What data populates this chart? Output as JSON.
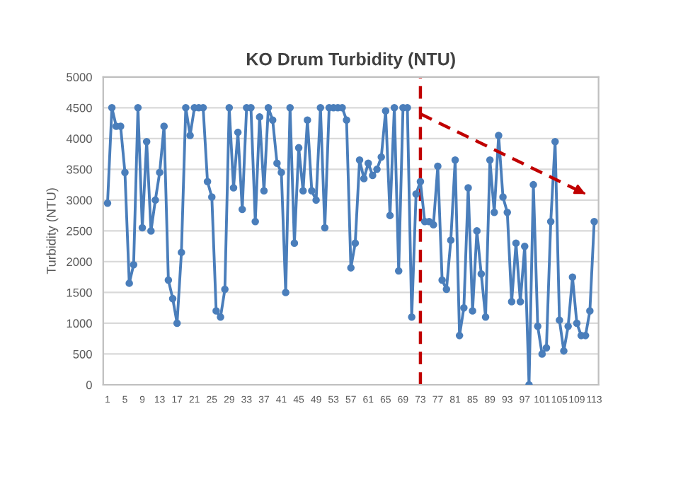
{
  "chart_data": {
    "type": "line",
    "title": "KO Drum Turbidity (NTU)",
    "ylabel": "Turbidity (NTU)",
    "x": [
      1,
      2,
      3,
      4,
      5,
      6,
      7,
      8,
      9,
      10,
      11,
      12,
      13,
      14,
      15,
      16,
      17,
      18,
      19,
      20,
      21,
      22,
      23,
      24,
      25,
      26,
      27,
      28,
      29,
      30,
      31,
      32,
      33,
      34,
      35,
      36,
      37,
      38,
      39,
      40,
      41,
      42,
      43,
      44,
      45,
      46,
      47,
      48,
      49,
      50,
      51,
      52,
      53,
      54,
      55,
      56,
      57,
      58,
      59,
      60,
      61,
      62,
      63,
      64,
      65,
      66,
      67,
      68,
      69,
      70,
      71,
      72,
      73,
      74,
      75,
      76,
      77,
      78,
      79,
      80,
      81,
      82,
      83,
      84,
      85,
      86,
      87,
      88,
      89,
      90,
      91,
      92,
      93,
      94,
      95,
      96,
      97,
      98,
      99,
      100,
      101,
      102,
      103,
      104,
      105,
      106,
      107,
      108,
      109,
      110,
      111,
      112,
      113
    ],
    "series": [
      {
        "color": "#4a7ebb",
        "marker": "circle",
        "line_style": "solid",
        "values": [
          2950,
          4500,
          4200,
          4200,
          3450,
          1650,
          1950,
          4500,
          2550,
          3950,
          2500,
          3000,
          3450,
          4200,
          1700,
          1400,
          1000,
          2150,
          4500,
          4050,
          4500,
          4500,
          4500,
          3300,
          3050,
          1200,
          1100,
          1550,
          4500,
          3200,
          4100,
          2850,
          4500,
          4500,
          2650,
          4350,
          3150,
          4500,
          4300,
          3600,
          3450,
          1500,
          4500,
          2300,
          3850,
          3150,
          4300,
          3150,
          3000,
          4500,
          2550,
          4500,
          4500,
          4500,
          4500,
          4300,
          1900,
          2300,
          3650,
          3350,
          3600,
          3400,
          3500,
          3700,
          4450,
          2750,
          4500,
          1850,
          4500,
          4500,
          1100,
          3100,
          3300,
          2650,
          2650,
          2600,
          3550,
          1700,
          1550,
          2350,
          3650,
          800,
          1250,
          3200,
          1200,
          2500,
          1800,
          1100,
          3650,
          2800,
          4050,
          3050,
          2800,
          1350,
          2300,
          1350,
          2250,
          0,
          3250,
          950,
          500,
          600,
          2650,
          3950,
          1050,
          550,
          950,
          1750,
          1000,
          800,
          800,
          1200,
          2650
        ]
      },
      {
        "type": "line",
        "color": "#c00000",
        "line_style": "dashed",
        "x": [
          73,
          111
        ],
        "values": [
          4400,
          3100
        ]
      }
    ],
    "ref_lines": [
      {
        "axis": "x",
        "value": 73,
        "color": "#c00000",
        "line_style": "dashed"
      }
    ],
    "xlim": [
      0,
      114
    ],
    "xticks": [
      1,
      5,
      9,
      13,
      17,
      21,
      25,
      29,
      33,
      37,
      41,
      45,
      49,
      53,
      57,
      61,
      65,
      69,
      73,
      77,
      81,
      85,
      89,
      93,
      97,
      101,
      105,
      109,
      113
    ],
    "ylim": [
      0,
      5000
    ],
    "yticks": [
      0,
      500,
      1000,
      1500,
      2000,
      2500,
      3000,
      3500,
      4000,
      4500,
      5000
    ],
    "grid": "y",
    "legend": false
  }
}
